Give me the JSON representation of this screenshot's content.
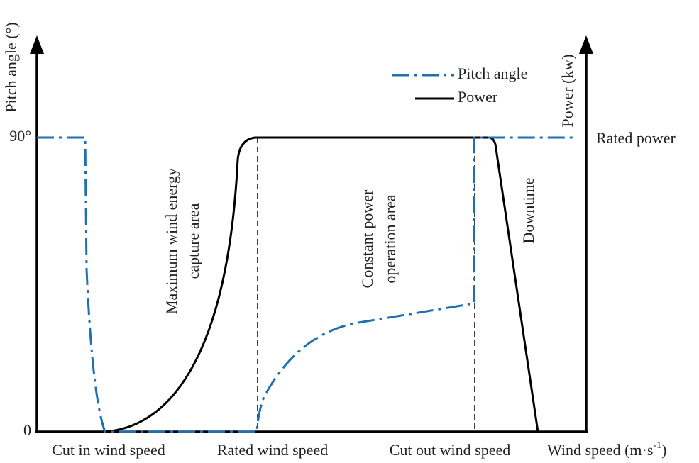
{
  "axes": {
    "left_label": "Pitch angle (°)",
    "left_top": "90°",
    "left_zero": "0",
    "right_label": "Power (kw)",
    "right_top": "Rated power",
    "x_label": {
      "text": "Wind speed (m·s",
      "superscript": "-1",
      "closing": ")"
    }
  },
  "x_markers": [
    "Cut in wind speed",
    "Rated wind speed",
    "Cut out wind speed"
  ],
  "legend": [
    "Pitch angle",
    "Power"
  ],
  "regions": {
    "maximum": [
      "Maximum wind energy",
      "capture area"
    ],
    "constant": [
      "Constant power",
      "operation area"
    ],
    "downtime": "Downtime"
  }
}
